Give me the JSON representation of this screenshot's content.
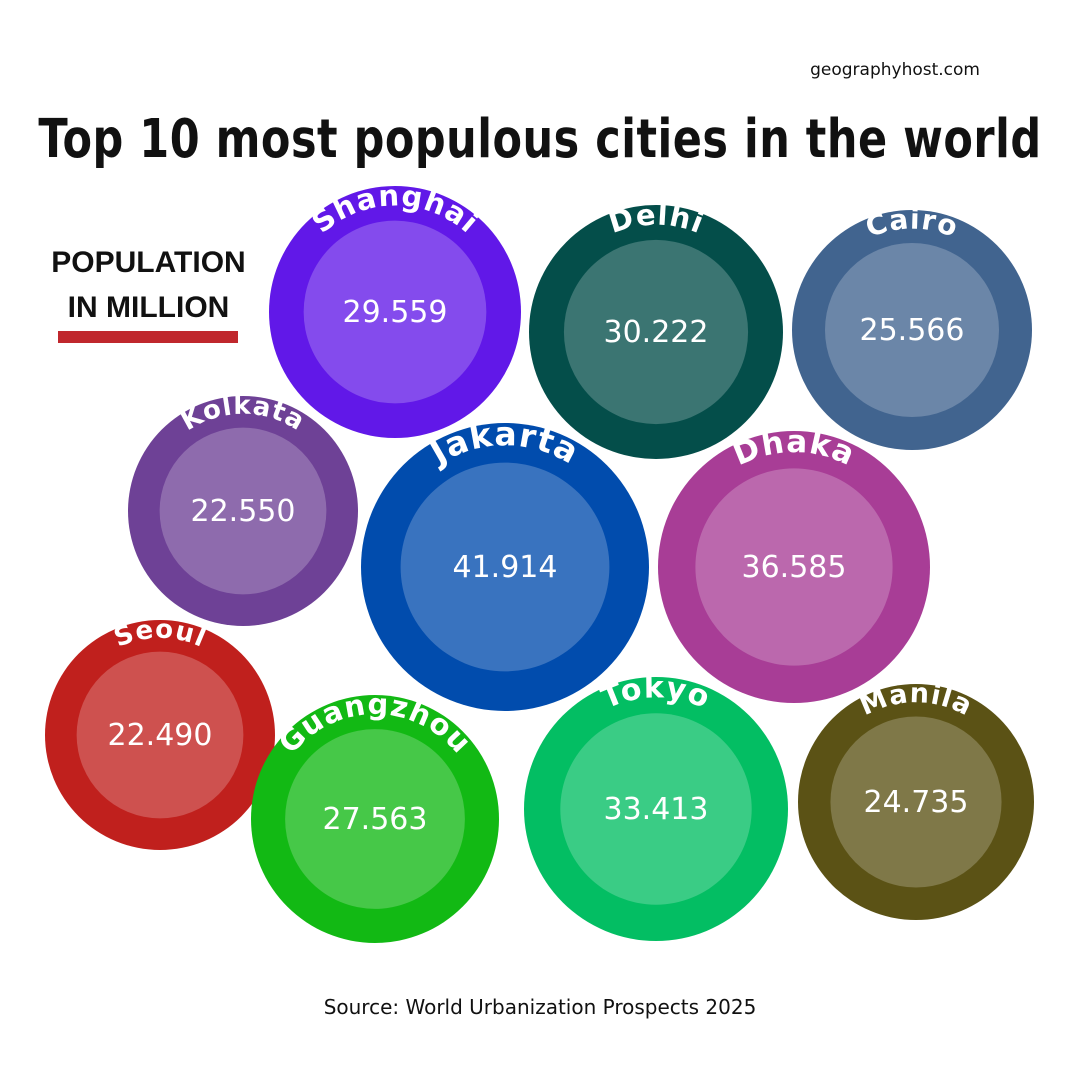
{
  "site": "geographyhost.com",
  "title": "Top 10 most populous cities in the world",
  "unit_label_line1": "POPULATION",
  "unit_label_line2": "IN MILLION",
  "source": "Source: World Urbanization Prospects 2025",
  "colors": {
    "unit_bar": "#c0272d"
  },
  "chart_data": {
    "type": "bubble",
    "title": "Top 10 most populous cities in the world",
    "unit": "POPULATION IN MILLION",
    "categories": [
      "Shanghai",
      "Delhi",
      "Cairo",
      "Kolkata",
      "Jakarta",
      "Dhaka",
      "Seoul",
      "Guangzhou",
      "Tokyo",
      "Manila"
    ],
    "values": [
      "29.559",
      "30.222",
      "25.566",
      "22.550",
      "41.914",
      "36.585",
      "22.490",
      "27.563",
      "33.413",
      "24.735"
    ],
    "colors": [
      "#6118e8",
      "#044e4a",
      "#41648f",
      "#6e4196",
      "#014cad",
      "#a83d96",
      "#c0201d",
      "#12b914",
      "#03be63",
      "#5b5215"
    ]
  }
}
